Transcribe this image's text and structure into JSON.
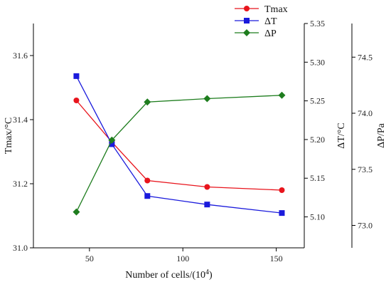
{
  "chart_data": {
    "type": "line",
    "x": [
      43,
      62,
      81,
      113,
      153
    ],
    "xlabel": "Number of cells/(10",
    "xlabel_sup": "4",
    "xlabel_end": ")",
    "xlim": [
      20,
      165
    ],
    "x_ticks": [
      50,
      100,
      150
    ],
    "axes": [
      {
        "id": "left",
        "label": "Tmax/°C",
        "ylim": [
          31.0,
          31.7
        ],
        "ticks": [
          31.0,
          31.2,
          31.4,
          31.6
        ],
        "tick_labels": [
          "31.0",
          "31.2",
          "31.4",
          "31.6"
        ]
      },
      {
        "id": "mid",
        "label": "ΔT/°C",
        "ylim": [
          5.06,
          5.35
        ],
        "ticks": [
          5.1,
          5.15,
          5.2,
          5.25,
          5.3,
          5.35
        ],
        "tick_labels": [
          "5.10",
          "5.15",
          "5.20",
          "5.25",
          "5.30",
          "5.35"
        ]
      },
      {
        "id": "right",
        "label": "ΔP/Pa",
        "ylim": [
          72.8,
          74.8
        ],
        "ticks": [
          73.0,
          73.5,
          74.0,
          74.5
        ],
        "tick_labels": [
          "73.0",
          "73.5",
          "74.0",
          "74.5"
        ]
      }
    ],
    "series": [
      {
        "name": "Tmax",
        "axis": "left",
        "color": "#e8141c",
        "marker": "circle",
        "values": [
          31.46,
          31.33,
          31.21,
          31.19,
          31.18
        ]
      },
      {
        "name": "ΔT",
        "axis": "mid",
        "color": "#1a1adc",
        "marker": "square",
        "values": [
          5.282,
          5.194,
          5.127,
          5.116,
          5.105
        ]
      },
      {
        "name": "ΔP",
        "axis": "right",
        "color": "#1e7d1e",
        "marker": "diamond",
        "values": [
          73.12,
          73.76,
          74.1,
          74.13,
          74.16
        ]
      }
    ],
    "legend_position": "top-right",
    "grid": false
  }
}
